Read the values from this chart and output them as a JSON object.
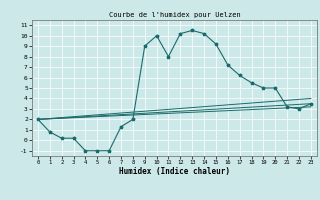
{
  "title": "Courbe de l'humidex pour Uelzen",
  "xlabel": "Humidex (Indice chaleur)",
  "background_color": "#cde8e8",
  "line_color": "#1a6b6b",
  "xlim": [
    -0.5,
    23.5
  ],
  "ylim": [
    -1.5,
    11.5
  ],
  "xticks": [
    0,
    1,
    2,
    3,
    4,
    5,
    6,
    7,
    8,
    9,
    10,
    11,
    12,
    13,
    14,
    15,
    16,
    17,
    18,
    19,
    20,
    21,
    22,
    23
  ],
  "yticks": [
    -1,
    0,
    1,
    2,
    3,
    4,
    5,
    6,
    7,
    8,
    9,
    10,
    11
  ],
  "series": [
    {
      "x": [
        0,
        1,
        2,
        3,
        4,
        5,
        6,
        7,
        8,
        9,
        10,
        11,
        12,
        13,
        14,
        15,
        16,
        17,
        18,
        19,
        20,
        21,
        22,
        23
      ],
      "y": [
        2,
        0.8,
        0.2,
        0.2,
        -1,
        -1,
        -1,
        1.3,
        2.0,
        9.0,
        10.0,
        8.0,
        10.2,
        10.5,
        10.2,
        9.2,
        7.2,
        6.2,
        5.5,
        5.0,
        5.0,
        3.2,
        3.0,
        3.5
      ]
    },
    {
      "x": [
        0,
        23
      ],
      "y": [
        2,
        4.0
      ]
    },
    {
      "x": [
        0,
        23
      ],
      "y": [
        2,
        3.2
      ]
    },
    {
      "x": [
        0,
        23
      ],
      "y": [
        2,
        3.5
      ]
    }
  ]
}
